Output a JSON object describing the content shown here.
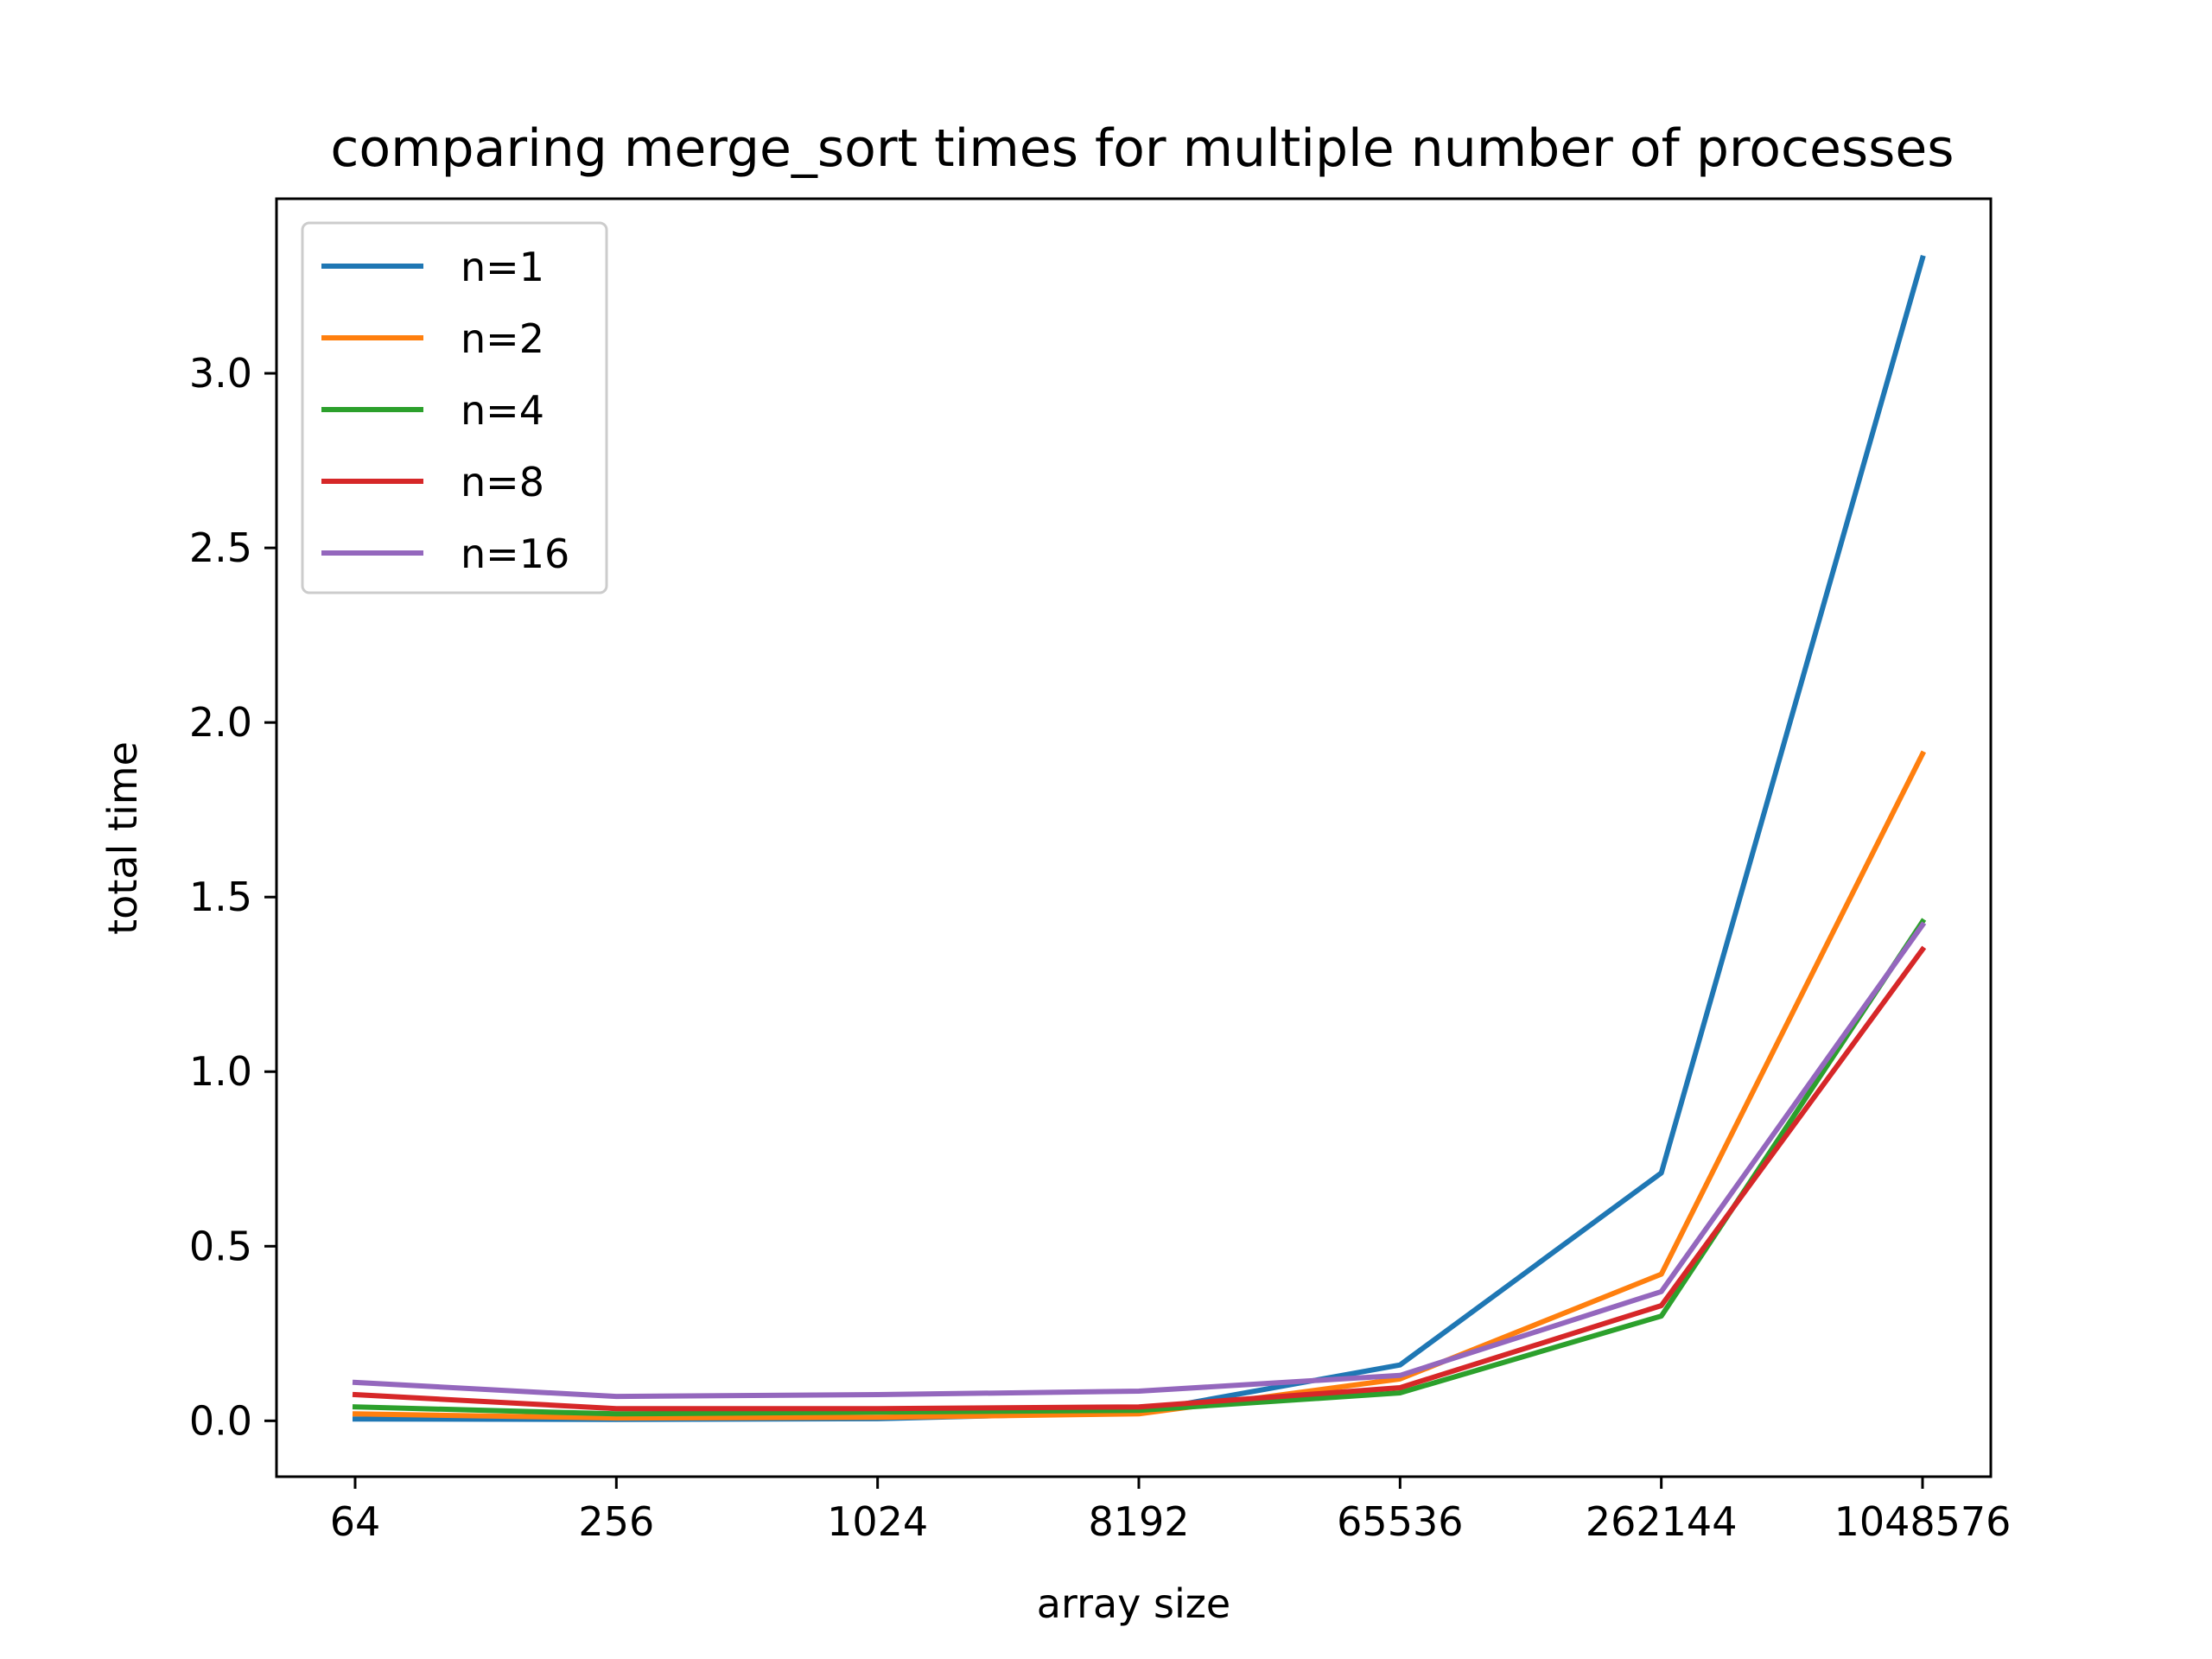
{
  "chart_data": {
    "type": "line",
    "title": "comparing merge_sort times for multiple number of processes",
    "xlabel": "array size",
    "ylabel": "total time",
    "categories": [
      "64",
      "256",
      "1024",
      "8192",
      "65536",
      "262144",
      "1048576"
    ],
    "ylim": [
      -0.16,
      3.5
    ],
    "yticks": [
      "0.0",
      "0.5",
      "1.0",
      "1.5",
      "2.0",
      "2.5",
      "3.0"
    ],
    "ytick_values": [
      0.0,
      0.5,
      1.0,
      1.5,
      2.0,
      2.5,
      3.0
    ],
    "grid": false,
    "legend_position": "top-left",
    "series": [
      {
        "name": "n=1",
        "color": "#1f77b4",
        "values": [
          0.005,
          0.004,
          0.006,
          0.025,
          0.16,
          0.71,
          3.33
        ]
      },
      {
        "name": "n=2",
        "color": "#ff7f0e",
        "values": [
          0.02,
          0.008,
          0.01,
          0.02,
          0.12,
          0.42,
          1.91
        ]
      },
      {
        "name": "n=4",
        "color": "#2ca02c",
        "values": [
          0.04,
          0.02,
          0.025,
          0.03,
          0.08,
          0.3,
          1.43
        ]
      },
      {
        "name": "n=8",
        "color": "#d62728",
        "values": [
          0.075,
          0.035,
          0.035,
          0.04,
          0.095,
          0.33,
          1.35
        ]
      },
      {
        "name": "n=16",
        "color": "#9467bd",
        "values": [
          0.11,
          0.07,
          0.075,
          0.085,
          0.13,
          0.37,
          1.42
        ]
      }
    ]
  }
}
